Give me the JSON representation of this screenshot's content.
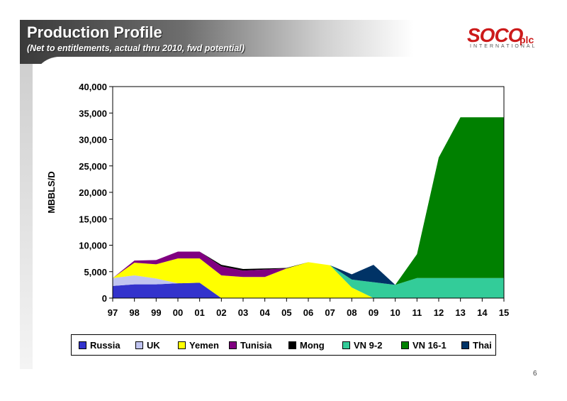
{
  "header": {
    "title": "Production Profile",
    "subtitle": "(Net to entitlements, actual thru 2010, fwd potential)"
  },
  "logo": {
    "main": "SOCO",
    "suffix": "plc",
    "tagline": "INTERNATIONAL"
  },
  "page_number": "6",
  "chart_data": {
    "type": "area",
    "stacked": true,
    "title": "",
    "xlabel": "",
    "ylabel": "MBBLS/D",
    "ylim": [
      0,
      40000
    ],
    "yticks": [
      "0",
      "5,000",
      "10,000",
      "15,000",
      "20,000",
      "25,000",
      "30,000",
      "35,000",
      "40,000"
    ],
    "categories": [
      "97",
      "98",
      "99",
      "00",
      "01",
      "02",
      "03",
      "04",
      "05",
      "06",
      "07",
      "08",
      "09",
      "10",
      "11",
      "12",
      "13",
      "14",
      "15"
    ],
    "grid": false,
    "legend_position": "bottom",
    "series": [
      {
        "name": "Russia",
        "color": "#3333cc",
        "values": [
          2300,
          2600,
          2600,
          2800,
          2900,
          0,
          0,
          0,
          0,
          0,
          0,
          0,
          0,
          0,
          0,
          0,
          0,
          0,
          0
        ]
      },
      {
        "name": "UK",
        "color": "#c0c4f0",
        "values": [
          1500,
          1700,
          1100,
          0,
          0,
          0,
          0,
          0,
          0,
          0,
          0,
          0,
          0,
          0,
          0,
          0,
          0,
          0,
          0
        ]
      },
      {
        "name": "Yemen",
        "color": "#ffff00",
        "values": [
          0,
          2400,
          2700,
          4700,
          4600,
          4300,
          4000,
          4000,
          5600,
          6800,
          6200,
          2000,
          0,
          0,
          0,
          0,
          0,
          0,
          0
        ]
      },
      {
        "name": "Tunisia",
        "color": "#800080",
        "values": [
          0,
          400,
          800,
          1300,
          1300,
          1700,
          1200,
          1400,
          0,
          0,
          0,
          0,
          0,
          0,
          0,
          0,
          0,
          0,
          0
        ]
      },
      {
        "name": "Mong",
        "color": "#000000",
        "values": [
          0,
          0,
          0,
          0,
          0,
          300,
          300,
          200,
          100,
          0,
          0,
          0,
          0,
          0,
          0,
          0,
          0,
          0,
          0
        ]
      },
      {
        "name": "VN 9-2",
        "color": "#33cc99",
        "values": [
          0,
          0,
          0,
          0,
          0,
          0,
          0,
          0,
          0,
          0,
          0,
          1500,
          3000,
          2500,
          3800,
          3800,
          3800,
          3800,
          3800
        ]
      },
      {
        "name": "VN 16-1",
        "color": "#008000",
        "values": [
          0,
          0,
          0,
          0,
          0,
          0,
          0,
          0,
          0,
          0,
          0,
          0,
          0,
          0,
          4500,
          22800,
          30400,
          30400,
          30400
        ]
      },
      {
        "name": "Thai",
        "color": "#003366",
        "values": [
          0,
          0,
          0,
          0,
          0,
          0,
          0,
          0,
          0,
          0,
          0,
          1000,
          3300,
          0,
          0,
          0,
          0,
          0,
          0
        ]
      }
    ]
  }
}
